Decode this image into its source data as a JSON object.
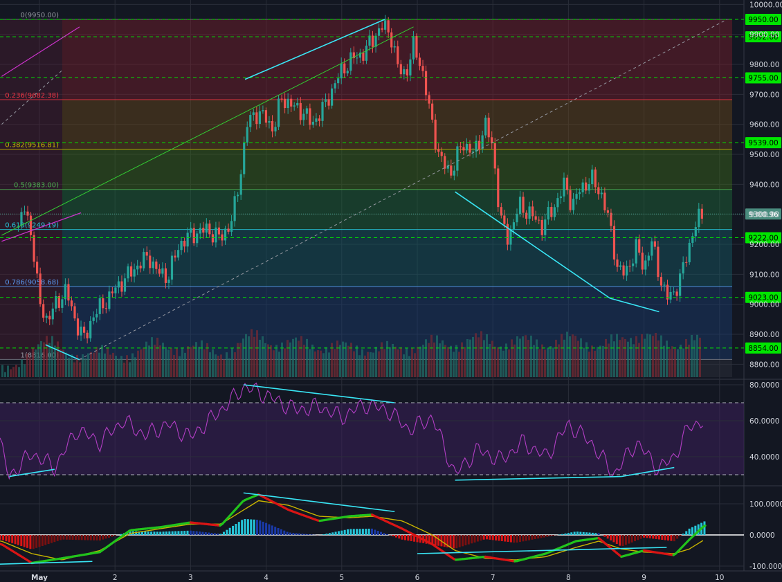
{
  "colors": {
    "background": "#131722",
    "grid": "#2a2e39",
    "axis_text": "#d1d4dc",
    "candle_up": "#26a69a",
    "candle_down": "#ef5350",
    "level_line": "#00e600",
    "level_label_bg": "#00e600",
    "price_label_bg": "#4a8c7e",
    "trend_line": "#39e6f5",
    "rsi_line": "#b23ec4",
    "macd_fast": "#22c31c",
    "macd_slow": "#c8b400",
    "macd_red": "#d91515",
    "fib_text_0": "#9598a1",
    "fib_text_236": "#f23645",
    "fib_text_382": "#c9b800",
    "fib_text_5": "#4caf50",
    "fib_text_618": "#26c6da",
    "fib_text_786": "#5b9cf6",
    "fib_text_1": "#9598a1"
  },
  "chart_data": [
    {
      "type": "candlestick",
      "x_tick_labels": [
        "May",
        "2",
        "3",
        "4",
        "5",
        "6",
        "7",
        "8",
        "9",
        "10"
      ],
      "y_tick_labels": [
        "10000.00",
        "9900.00",
        "9800.00",
        "9700.00",
        "9600.00",
        "9500.00",
        "9400.00",
        "9300.00",
        "9200.00",
        "9100.00",
        "9000.00",
        "8900.00",
        "8800.00"
      ],
      "ylim": [
        8770,
        10010
      ],
      "current_price": "9300.96",
      "horizontal_levels": [
        "9950.00",
        "9892.00",
        "9755.00",
        "9539.00",
        "9222.00",
        "9023.00",
        "8854.00"
      ],
      "fib_levels": [
        {
          "label": "0(9950.00)",
          "value": 9950.0
        },
        {
          "label": "0.236(9682.38)",
          "value": 9682.38
        },
        {
          "label": "0.382(9516.81)",
          "value": 9516.81
        },
        {
          "label": "0.5(9383.00)",
          "value": 9383.0
        },
        {
          "label": "0.618(9249.19)",
          "value": 9249.19
        },
        {
          "label": "0.786(9058.68)",
          "value": 9058.68
        },
        {
          "label": "1(8816.00)",
          "value": 8816.0
        }
      ],
      "path_points": [
        [
          0.72,
          9260
        ],
        [
          0.8,
          9320
        ],
        [
          0.9,
          9230
        ],
        [
          1.0,
          9000
        ],
        [
          1.1,
          8950
        ],
        [
          1.2,
          8990
        ],
        [
          1.35,
          9050
        ],
        [
          1.45,
          8960
        ],
        [
          1.6,
          8880
        ],
        [
          1.7,
          8960
        ],
        [
          1.85,
          9000
        ],
        [
          2.0,
          9050
        ],
        [
          2.15,
          9090
        ],
        [
          2.3,
          9130
        ],
        [
          2.45,
          9160
        ],
        [
          2.55,
          9110
        ],
        [
          2.7,
          9090
        ],
        [
          2.85,
          9200
        ],
        [
          3.0,
          9230
        ],
        [
          3.2,
          9250
        ],
        [
          3.4,
          9220
        ],
        [
          3.55,
          9280
        ],
        [
          3.65,
          9420
        ],
        [
          3.75,
          9600
        ],
        [
          3.85,
          9640
        ],
        [
          4.0,
          9620
        ],
        [
          4.1,
          9580
        ],
        [
          4.2,
          9690
        ],
        [
          4.35,
          9660
        ],
        [
          4.5,
          9640
        ],
        [
          4.6,
          9600
        ],
        [
          4.75,
          9650
        ],
        [
          4.9,
          9730
        ],
        [
          5.0,
          9780
        ],
        [
          5.15,
          9820
        ],
        [
          5.3,
          9840
        ],
        [
          5.45,
          9900
        ],
        [
          5.55,
          9930
        ],
        [
          5.65,
          9900
        ],
        [
          5.75,
          9780
        ],
        [
          5.85,
          9770
        ],
        [
          5.95,
          9860
        ],
        [
          6.05,
          9800
        ],
        [
          6.15,
          9660
        ],
        [
          6.3,
          9480
        ],
        [
          6.45,
          9440
        ],
        [
          6.6,
          9540
        ],
        [
          6.75,
          9500
        ],
        [
          6.9,
          9600
        ],
        [
          7.0,
          9520
        ],
        [
          7.1,
          9280
        ],
        [
          7.2,
          9220
        ],
        [
          7.35,
          9330
        ],
        [
          7.5,
          9300
        ],
        [
          7.65,
          9260
        ],
        [
          7.8,
          9320
        ],
        [
          7.95,
          9400
        ],
        [
          8.05,
          9330
        ],
        [
          8.15,
          9380
        ],
        [
          8.3,
          9420
        ],
        [
          8.45,
          9360
        ],
        [
          8.55,
          9260
        ],
        [
          8.65,
          9120
        ],
        [
          8.75,
          9100
        ],
        [
          8.9,
          9190
        ],
        [
          9.0,
          9120
        ],
        [
          9.1,
          9210
        ],
        [
          9.2,
          9100
        ],
        [
          9.3,
          9020
        ],
        [
          9.4,
          9040
        ],
        [
          9.5,
          9100
        ],
        [
          9.6,
          9200
        ],
        [
          9.7,
          9280
        ],
        [
          9.8,
          9300
        ]
      ],
      "volume_ylim": [
        0,
        100
      ],
      "volume_peaks": [
        [
          1.1,
          30
        ],
        [
          1.8,
          20
        ],
        [
          2.5,
          28
        ],
        [
          3.1,
          25
        ],
        [
          3.8,
          36
        ],
        [
          4.4,
          30
        ],
        [
          5.0,
          26
        ],
        [
          5.6,
          24
        ],
        [
          6.2,
          30
        ],
        [
          6.8,
          34
        ],
        [
          7.4,
          32
        ],
        [
          8.0,
          34
        ],
        [
          8.6,
          30
        ],
        [
          9.1,
          33
        ],
        [
          9.7,
          32
        ]
      ]
    },
    {
      "type": "line",
      "name_printed": "",
      "y_tick_labels": [
        "80.0000",
        "60.0000",
        "40.0000"
      ],
      "ylim": [
        24,
        83
      ],
      "bands": [
        30,
        70
      ],
      "series": [
        {
          "values": [
            [
              0.0,
              46
            ],
            [
              0.4,
              60
            ],
            [
              0.6,
              29
            ],
            [
              0.9,
              42
            ],
            [
              1.2,
              34
            ],
            [
              1.5,
              55
            ],
            [
              1.8,
              48
            ],
            [
              2.1,
              60
            ],
            [
              2.4,
              52
            ],
            [
              2.7,
              58
            ],
            [
              3.0,
              51
            ],
            [
              3.3,
              62
            ],
            [
              3.6,
              74
            ],
            [
              3.7,
              79
            ],
            [
              3.9,
              76
            ],
            [
              4.1,
              72
            ],
            [
              4.4,
              66
            ],
            [
              4.7,
              68
            ],
            [
              5.0,
              62
            ],
            [
              5.3,
              69
            ],
            [
              5.6,
              66
            ],
            [
              5.9,
              55
            ],
            [
              6.2,
              62
            ],
            [
              6.5,
              30
            ],
            [
              6.8,
              44
            ],
            [
              7.1,
              38
            ],
            [
              7.4,
              48
            ],
            [
              7.7,
              40
            ],
            [
              8.0,
              58
            ],
            [
              8.3,
              48
            ],
            [
              8.6,
              30
            ],
            [
              8.9,
              48
            ],
            [
              9.2,
              33
            ],
            [
              9.4,
              40
            ],
            [
              9.6,
              57
            ],
            [
              9.8,
              60
            ]
          ]
        }
      ],
      "trend_lines": [
        [
          [
            0.6,
            29
          ],
          [
            1.2,
            33
          ]
        ],
        [
          [
            3.7,
            80
          ],
          [
            5.7,
            70
          ]
        ],
        [
          [
            6.5,
            27
          ],
          [
            8.7,
            29
          ]
        ],
        [
          [
            8.7,
            29
          ],
          [
            9.4,
            34
          ]
        ]
      ]
    },
    {
      "type": "line",
      "y_tick_labels": [
        "100.0000",
        "0.0000",
        "-100.0000"
      ],
      "ylim": [
        -105,
        145
      ],
      "series": [
        {
          "role": "fast",
          "values": [
            [
              0.0,
              -10
            ],
            [
              0.5,
              -30
            ],
            [
              0.9,
              -90
            ],
            [
              1.3,
              -75
            ],
            [
              1.8,
              -55
            ],
            [
              2.2,
              15
            ],
            [
              2.6,
              25
            ],
            [
              3.0,
              40
            ],
            [
              3.4,
              30
            ],
            [
              3.7,
              110
            ],
            [
              3.9,
              130
            ],
            [
              4.3,
              80
            ],
            [
              4.7,
              45
            ],
            [
              5.1,
              60
            ],
            [
              5.4,
              65
            ],
            [
              5.8,
              20
            ],
            [
              6.2,
              -30
            ],
            [
              6.5,
              -80
            ],
            [
              6.9,
              -70
            ],
            [
              7.3,
              -85
            ],
            [
              7.7,
              -60
            ],
            [
              8.1,
              -20
            ],
            [
              8.4,
              -10
            ],
            [
              8.7,
              -70
            ],
            [
              9.0,
              -50
            ],
            [
              9.4,
              -65
            ],
            [
              9.6,
              -15
            ],
            [
              9.8,
              30
            ]
          ]
        },
        {
          "role": "slow",
          "values": [
            [
              0.0,
              -5
            ],
            [
              0.5,
              -20
            ],
            [
              0.9,
              -60
            ],
            [
              1.3,
              -80
            ],
            [
              1.8,
              -50
            ],
            [
              2.2,
              5
            ],
            [
              2.6,
              20
            ],
            [
              3.0,
              35
            ],
            [
              3.4,
              35
            ],
            [
              3.7,
              80
            ],
            [
              3.9,
              110
            ],
            [
              4.3,
              95
            ],
            [
              4.7,
              60
            ],
            [
              5.1,
              55
            ],
            [
              5.4,
              60
            ],
            [
              5.8,
              45
            ],
            [
              6.2,
              0
            ],
            [
              6.5,
              -50
            ],
            [
              6.9,
              -75
            ],
            [
              7.3,
              -80
            ],
            [
              7.7,
              -70
            ],
            [
              8.1,
              -40
            ],
            [
              8.4,
              -20
            ],
            [
              8.7,
              -45
            ],
            [
              9.0,
              -55
            ],
            [
              9.4,
              -60
            ],
            [
              9.6,
              -45
            ],
            [
              9.8,
              -15
            ]
          ]
        }
      ],
      "trend_lines": [
        [
          [
            0.3,
            -95
          ],
          [
            1.7,
            -85
          ]
        ],
        [
          [
            3.7,
            135
          ],
          [
            5.7,
            75
          ]
        ],
        [
          [
            6.0,
            -60
          ],
          [
            9.3,
            -40
          ]
        ]
      ]
    }
  ]
}
